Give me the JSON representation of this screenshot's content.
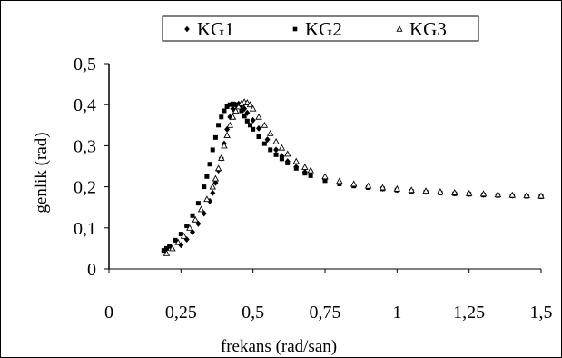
{
  "chart_data": {
    "type": "scatter",
    "title": "",
    "xlabel": "frekans (rad/san)",
    "ylabel": "genlik (rad)",
    "xlim": [
      0,
      1.5
    ],
    "ylim": [
      0,
      0.5
    ],
    "x_ticks": [
      0,
      0.25,
      0.5,
      0.75,
      1,
      1.25,
      1.5
    ],
    "x_tick_labels": [
      "0",
      "0,25",
      "0,5",
      "0,75",
      "1",
      "1,25",
      "1,5"
    ],
    "y_ticks": [
      0,
      0.1,
      0.2,
      0.3,
      0.4,
      0.5
    ],
    "y_tick_labels": [
      "0",
      "0,1",
      "0,2",
      "0,3",
      "0,4",
      "0,5"
    ],
    "grid": false,
    "legend_position": "top",
    "series": [
      {
        "name": "KG1",
        "marker": "diamond",
        "color": "#000000",
        "x": [
          0.25,
          0.27,
          0.29,
          0.31,
          0.33,
          0.35,
          0.36,
          0.37,
          0.38,
          0.39,
          0.4,
          0.41,
          0.42,
          0.43,
          0.44,
          0.45,
          0.46,
          0.47,
          0.48,
          0.5,
          0.52,
          0.55,
          0.58,
          0.6,
          0.62,
          0.65,
          0.68,
          0.7,
          0.75,
          0.8,
          0.85,
          0.9,
          0.95,
          1.0,
          1.05,
          1.1,
          1.15,
          1.2,
          1.25,
          1.3,
          1.35,
          1.4,
          1.45,
          1.5
        ],
        "y": [
          0.058,
          0.072,
          0.09,
          0.11,
          0.135,
          0.165,
          0.185,
          0.21,
          0.24,
          0.27,
          0.305,
          0.34,
          0.37,
          0.39,
          0.4,
          0.402,
          0.398,
          0.39,
          0.38,
          0.362,
          0.342,
          0.315,
          0.29,
          0.275,
          0.262,
          0.248,
          0.236,
          0.23,
          0.218,
          0.21,
          0.205,
          0.2,
          0.196,
          0.193,
          0.19,
          0.188,
          0.186,
          0.184,
          0.183,
          0.181,
          0.18,
          0.179,
          0.178,
          0.177
        ]
      },
      {
        "name": "KG2",
        "marker": "square",
        "color": "#000000",
        "x": [
          0.19,
          0.2,
          0.21,
          0.23,
          0.25,
          0.27,
          0.29,
          0.31,
          0.33,
          0.34,
          0.35,
          0.36,
          0.37,
          0.38,
          0.39,
          0.4,
          0.41,
          0.42,
          0.43,
          0.44,
          0.45,
          0.46,
          0.47,
          0.48,
          0.49,
          0.5,
          0.52,
          0.54,
          0.56,
          0.58,
          0.6,
          0.62,
          0.65,
          0.68,
          0.7,
          0.75,
          0.8,
          0.85,
          0.9,
          0.95,
          1.0,
          1.05,
          1.1,
          1.15,
          1.2,
          1.25,
          1.3,
          1.35,
          1.4,
          1.45,
          1.5
        ],
        "y": [
          0.045,
          0.05,
          0.055,
          0.07,
          0.085,
          0.105,
          0.13,
          0.16,
          0.2,
          0.225,
          0.255,
          0.29,
          0.32,
          0.35,
          0.37,
          0.385,
          0.395,
          0.4,
          0.402,
          0.4,
          0.395,
          0.385,
          0.372,
          0.36,
          0.35,
          0.34,
          0.322,
          0.305,
          0.29,
          0.278,
          0.268,
          0.258,
          0.245,
          0.233,
          0.227,
          0.215,
          0.207,
          0.202,
          0.198,
          0.195,
          0.192,
          0.189,
          0.187,
          0.185,
          0.183,
          0.182,
          0.18,
          0.179,
          0.178,
          0.177,
          0.176
        ]
      },
      {
        "name": "KG3",
        "marker": "triangle",
        "color": "#000000",
        "x": [
          0.2,
          0.22,
          0.24,
          0.26,
          0.28,
          0.3,
          0.32,
          0.34,
          0.36,
          0.37,
          0.38,
          0.39,
          0.4,
          0.41,
          0.42,
          0.43,
          0.44,
          0.45,
          0.46,
          0.47,
          0.48,
          0.49,
          0.5,
          0.52,
          0.54,
          0.56,
          0.58,
          0.6,
          0.62,
          0.65,
          0.68,
          0.7,
          0.75,
          0.8,
          0.85,
          0.9,
          0.95,
          1.0,
          1.05,
          1.1,
          1.15,
          1.2,
          1.25,
          1.3,
          1.35,
          1.4,
          1.45,
          1.5
        ],
        "y": [
          0.038,
          0.05,
          0.065,
          0.08,
          0.1,
          0.12,
          0.145,
          0.17,
          0.2,
          0.22,
          0.245,
          0.27,
          0.3,
          0.325,
          0.35,
          0.37,
          0.385,
          0.395,
          0.403,
          0.407,
          0.405,
          0.4,
          0.39,
          0.37,
          0.35,
          0.33,
          0.31,
          0.295,
          0.28,
          0.262,
          0.248,
          0.24,
          0.225,
          0.214,
          0.207,
          0.202,
          0.198,
          0.195,
          0.192,
          0.19,
          0.188,
          0.186,
          0.184,
          0.183,
          0.181,
          0.18,
          0.179,
          0.178
        ]
      }
    ]
  }
}
